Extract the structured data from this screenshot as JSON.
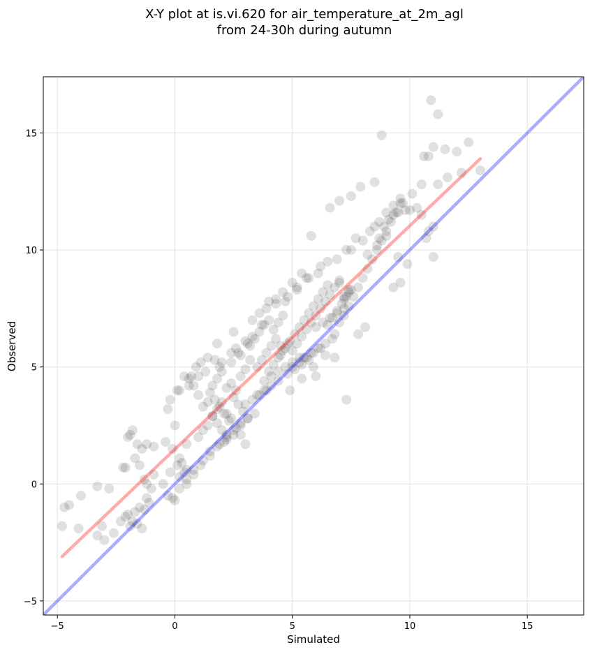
{
  "chart_data": {
    "type": "scatter",
    "title_line1": "X-Y plot at is.vi.620 for air_temperature_at_2m_agl",
    "title_line2": "from 24-30h during autumn",
    "xlabel": "Simulated",
    "ylabel": "Observed",
    "xlim": [
      -5.6,
      17.4
    ],
    "ylim": [
      -5.6,
      17.4
    ],
    "xticks": [
      -5,
      0,
      5,
      10,
      15
    ],
    "yticks": [
      -5,
      0,
      5,
      10,
      15
    ],
    "xtick_labels": [
      "−5",
      "0",
      "5",
      "10",
      "15"
    ],
    "ytick_labels": [
      "−5",
      "0",
      "5",
      "10",
      "15"
    ],
    "grid": true,
    "colors": {
      "points": "#000000",
      "fit_line": "#ff0000",
      "identity_line": "#0000ff",
      "grid": "#e6e6e6"
    },
    "fit_line": {
      "x": [
        -4.8,
        13.0
      ],
      "y": [
        -3.1,
        13.9
      ]
    },
    "identity_line": {
      "x": [
        -5.6,
        17.4
      ],
      "y": [
        -5.6,
        17.4
      ]
    },
    "series": [
      {
        "x": [
          -4.8,
          -4.5,
          -4.7,
          -4.0,
          -4.1,
          -3.3,
          -3.1,
          -3.0,
          -2.8,
          -2.6,
          -3.3,
          -2.3,
          -2.1,
          -2.0,
          -1.9,
          -1.8,
          -1.7,
          -1.6,
          -1.5,
          -1.3,
          -1.4,
          -1.2,
          -1.1,
          -1.0,
          -1.3,
          -0.9,
          -1.5,
          -2.1,
          -1.7,
          -1.4,
          -1.9,
          -1.8,
          -1.2,
          -0.9,
          -1.6,
          -2.2,
          -2.0,
          -1.2,
          -0.5,
          -0.3,
          -0.2,
          -0.1,
          0.0,
          0.1,
          0.2,
          0.3,
          0.4,
          0.5,
          -0.4,
          -0.1,
          0.2,
          0.5,
          0.0,
          -0.3,
          0.1,
          0.6,
          0.9,
          0.7,
          0.8,
          1.0,
          1.2,
          1.4,
          1.6,
          1.8,
          2.0,
          2.2,
          2.4,
          2.6,
          2.8,
          3.0,
          1.0,
          1.2,
          1.4,
          1.6,
          1.8,
          2.0,
          2.2,
          1.5,
          1.7,
          1.9,
          2.1,
          2.3,
          1.6,
          1.8,
          2.0,
          2.2,
          1.4,
          1.9,
          2.4,
          2.6,
          2.8,
          3.0,
          3.2,
          2.5,
          2.7,
          2.9,
          3.1,
          2.4,
          2.6,
          2.8,
          3.0,
          3.2,
          3.4,
          3.6,
          3.8,
          4.0,
          4.2,
          4.4,
          4.6,
          3.5,
          3.7,
          3.9,
          4.1,
          4.3,
          4.5,
          4.7,
          4.9,
          5.1,
          5.3,
          5.5,
          5.7,
          5.9,
          6.1,
          6.3,
          6.5,
          4.0,
          4.2,
          4.4,
          4.6,
          4.8,
          5.0,
          5.2,
          5.4,
          5.6,
          5.8,
          6.0,
          6.2,
          6.4,
          6.6,
          6.8,
          7.0,
          7.2,
          7.4,
          6.5,
          6.7,
          6.9,
          7.1,
          7.3,
          7.5,
          7.0,
          7.2,
          7.4,
          6.8,
          7.0,
          7.2,
          7.4,
          7.6,
          7.8,
          8.0,
          8.2,
          8.4,
          8.6,
          8.8,
          9.0,
          9.2,
          9.4,
          9.6,
          9.8,
          10.0,
          10.3,
          10.5,
          10.8,
          11.0,
          9.5,
          9.9,
          10.7,
          11.0,
          8.5,
          8.7,
          8.9,
          9.1,
          9.3,
          9.5,
          9.7,
          10.1,
          10.5,
          11.2,
          11.6,
          12.2,
          13.0,
          12.0,
          11.0,
          10.8,
          10.6,
          11.5,
          12.5,
          10.9,
          11.2,
          7.5,
          8.0,
          8.3,
          8.7,
          9.0,
          9.3,
          9.6,
          7.9,
          8.5,
          8.8,
          6.0,
          6.3,
          6.6,
          6.9,
          7.2,
          5.5,
          5.8,
          6.1,
          6.4,
          6.7,
          5.0,
          5.3,
          5.6,
          5.9,
          6.2,
          4.5,
          4.8,
          5.1,
          5.4,
          5.7,
          3.8,
          4.1,
          4.4,
          4.7,
          5.0,
          5.3,
          3.5,
          3.8,
          4.1,
          4.4,
          3.0,
          3.3,
          3.6,
          3.9,
          2.8,
          3.1,
          3.4,
          2.2,
          2.5,
          2.8,
          1.9,
          2.2,
          2.5,
          1.5,
          1.8,
          2.1,
          1.2,
          1.5,
          0.8,
          1.1,
          0.5,
          0.8,
          0.2,
          0.5,
          4.7,
          5.2,
          5.7,
          6.2,
          4.9,
          5.4,
          5.9,
          6.4,
          3.9,
          4.3,
          3.3,
          3.7,
          2.7,
          3.1,
          2.0,
          2.4,
          1.3,
          1.7,
          0.6,
          1.0,
          -0.2,
          0.2,
          6.9,
          7.3,
          7.7,
          6.1,
          6.5,
          5.2,
          5.6,
          4.8,
          4.3,
          3.6,
          5.8,
          6.6,
          7.0,
          7.5,
          8.2,
          8.6,
          9.0,
          5.0,
          5.4,
          4.6,
          4.0,
          3.3,
          2.5,
          1.8,
          1.1,
          0.4,
          9.3,
          9.6,
          8.1,
          7.8,
          6.8,
          6.0,
          7.3
        ],
        "y": [
          -1.8,
          -0.9,
          -1.0,
          -0.5,
          -1.9,
          -2.2,
          -1.8,
          -2.4,
          -0.2,
          -2.1,
          -0.1,
          -1.6,
          -1.4,
          -1.3,
          -1.8,
          -1.6,
          -1.2,
          -1.7,
          -1.0,
          -1.1,
          -1.9,
          -0.6,
          -0.8,
          -0.2,
          0.2,
          0.4,
          0.8,
          0.7,
          1.1,
          1.5,
          2.1,
          2.3,
          1.7,
          1.6,
          1.7,
          0.7,
          2.0,
          0.0,
          0.0,
          -0.5,
          0.5,
          -0.6,
          -0.7,
          0.8,
          0.3,
          0.9,
          0.5,
          0.6,
          1.8,
          1.5,
          1.1,
          1.7,
          2.5,
          3.2,
          4.0,
          4.5,
          5.0,
          4.6,
          4.2,
          3.8,
          3.3,
          3.5,
          2.9,
          2.6,
          2.3,
          2.0,
          2.8,
          2.4,
          2.1,
          1.7,
          2.0,
          2.3,
          2.5,
          2.9,
          3.2,
          3.5,
          3.0,
          3.9,
          3.6,
          3.3,
          3.0,
          2.7,
          4.2,
          4.5,
          4.8,
          4.1,
          5.4,
          5.0,
          4.3,
          4.0,
          4.6,
          4.9,
          5.3,
          3.7,
          3.4,
          3.1,
          2.8,
          5.2,
          5.8,
          5.5,
          6.1,
          5.9,
          6.2,
          6.5,
          6.8,
          7.0,
          6.6,
          6.9,
          7.2,
          5.0,
          5.3,
          5.6,
          5.9,
          6.2,
          5.5,
          5.8,
          6.1,
          6.4,
          6.7,
          7.0,
          7.3,
          7.6,
          7.9,
          8.2,
          8.5,
          4.8,
          5.1,
          5.4,
          5.7,
          6.0,
          5.7,
          6.0,
          6.3,
          6.6,
          6.9,
          7.2,
          7.5,
          7.8,
          8.1,
          8.4,
          8.7,
          8.0,
          8.3,
          6.8,
          7.1,
          7.4,
          7.7,
          8.0,
          8.3,
          8.6,
          7.9,
          8.2,
          6.4,
          6.9,
          7.2,
          7.6,
          8.0,
          8.4,
          8.8,
          9.2,
          9.6,
          10.0,
          10.4,
          10.8,
          11.2,
          11.6,
          12.0,
          11.7,
          11.7,
          11.8,
          11.5,
          10.8,
          11.0,
          9.7,
          9.4,
          10.5,
          9.7,
          11.0,
          10.5,
          11.0,
          11.3,
          11.5,
          11.6,
          12.0,
          12.4,
          12.8,
          12.8,
          13.1,
          13.3,
          13.4,
          14.2,
          14.4,
          14.0,
          14.0,
          14.3,
          14.6,
          16.4,
          15.8,
          10.0,
          10.4,
          10.8,
          11.2,
          11.6,
          11.9,
          12.2,
          12.7,
          12.9,
          14.9,
          6.7,
          6.9,
          7.1,
          7.3,
          7.5,
          5.4,
          5.6,
          5.8,
          6.0,
          6.2,
          5.0,
          5.2,
          5.4,
          5.6,
          5.8,
          5.9,
          4.7,
          4.9,
          5.1,
          5.3,
          4.4,
          4.6,
          4.8,
          5.0,
          5.2,
          5.4,
          3.8,
          4.0,
          4.2,
          4.4,
          3.4,
          3.6,
          3.8,
          4.0,
          2.6,
          2.8,
          3.0,
          2.1,
          2.3,
          2.5,
          1.7,
          1.9,
          2.1,
          1.4,
          1.6,
          1.8,
          1.0,
          1.2,
          0.6,
          0.8,
          0.2,
          0.4,
          -0.2,
          0.0,
          7.8,
          8.3,
          8.8,
          9.3,
          4.0,
          4.5,
          5.0,
          5.5,
          7.5,
          7.9,
          6.3,
          6.8,
          5.6,
          6.0,
          5.2,
          5.6,
          4.8,
          5.3,
          4.2,
          4.6,
          3.6,
          4.0,
          9.6,
          10.0,
          10.5,
          9.0,
          9.5,
          8.4,
          8.8,
          8.0,
          7.7,
          7.3,
          10.6,
          11.8,
          12.1,
          12.3,
          9.8,
          10.2,
          10.6,
          8.6,
          9.0,
          8.2,
          7.8,
          7.0,
          6.5,
          6.0,
          5.2,
          4.6,
          8.4,
          8.6,
          6.7,
          6.4,
          5.4,
          4.6,
          3.6
        ]
      }
    ]
  }
}
